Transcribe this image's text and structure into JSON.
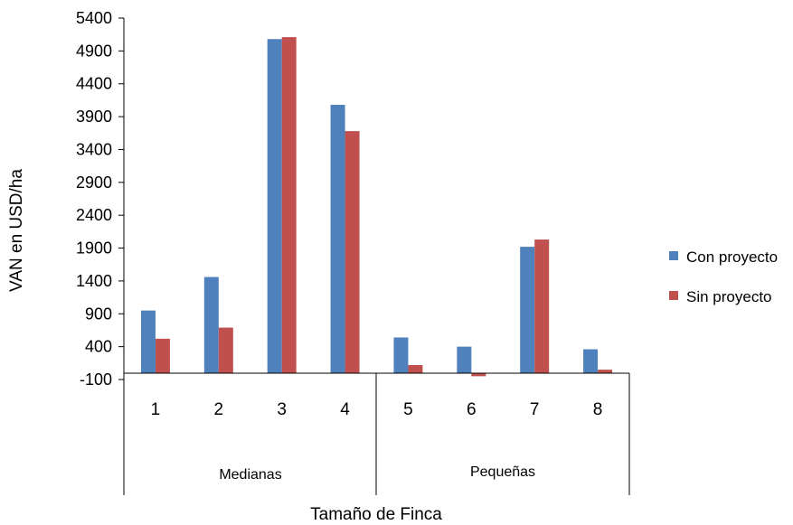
{
  "chart_data": {
    "type": "bar",
    "title": "",
    "xlabel": "Tamaño de Finca",
    "ylabel": "VAN en USD/ha",
    "ylim": [
      -100,
      5400
    ],
    "yticks": [
      {
        "value": -100,
        "label": "-100",
        "color": "#e02020"
      },
      {
        "value": 400,
        "label": "400"
      },
      {
        "value": 900,
        "label": "900"
      },
      {
        "value": 1400,
        "label": "1400"
      },
      {
        "value": 1900,
        "label": "1900"
      },
      {
        "value": 2400,
        "label": "2400"
      },
      {
        "value": 2900,
        "label": "2900"
      },
      {
        "value": 3400,
        "label": "3400"
      },
      {
        "value": 3900,
        "label": "3900"
      },
      {
        "value": 4400,
        "label": "4400"
      },
      {
        "value": 4900,
        "label": "4900"
      },
      {
        "value": 5400,
        "label": "5400"
      }
    ],
    "baseline": 0,
    "categories": [
      "1",
      "2",
      "3",
      "4",
      "5",
      "6",
      "7",
      "8"
    ],
    "groups": [
      {
        "label": "Medianas",
        "categories": [
          "1",
          "2",
          "3",
          "4"
        ]
      },
      {
        "label": "Pequeñas",
        "categories": [
          "5",
          "6",
          "7",
          "8"
        ]
      }
    ],
    "series": [
      {
        "name": "Con proyecto",
        "color": "#4f81bd",
        "values": [
          950,
          1460,
          5080,
          4080,
          540,
          400,
          1920,
          360
        ]
      },
      {
        "name": "Sin proyecto",
        "color": "#c0504d",
        "values": [
          520,
          690,
          5110,
          3680,
          120,
          -50,
          2030,
          50
        ]
      }
    ],
    "grid": false,
    "legend": "right"
  }
}
